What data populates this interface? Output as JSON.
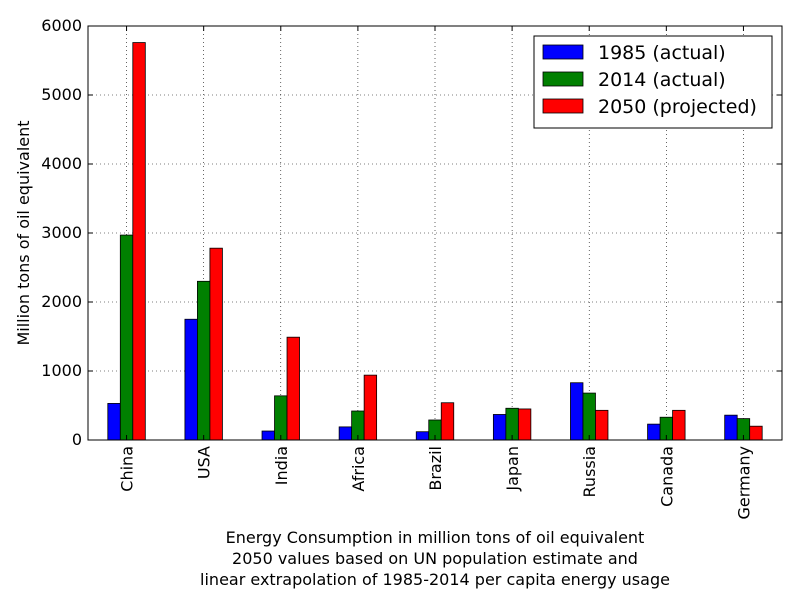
{
  "chart_data": {
    "type": "bar",
    "title": "",
    "xlabel": "",
    "ylabel": "Million tons of oil equivalent",
    "xlabel_lines": [
      "Energy Consumption in million tons of oil equivalent",
      "2050 values based on UN population estimate and",
      "linear extrapolation of 1985-2014 per capita energy usage"
    ],
    "categories": [
      "China",
      "USA",
      "India",
      "Africa",
      "Brazil",
      "Japan",
      "Russia",
      "Canada",
      "Germany"
    ],
    "ylim": [
      0,
      6000
    ],
    "yticks": [
      0,
      1000,
      2000,
      3000,
      4000,
      5000,
      6000
    ],
    "grid": true,
    "legend_position": "top-right",
    "series": [
      {
        "name": "1985 (actual)",
        "color": "#0000ff",
        "values": [
          530,
          1750,
          130,
          190,
          120,
          370,
          830,
          230,
          360
        ]
      },
      {
        "name": "2014 (actual)",
        "color": "#008000",
        "values": [
          2970,
          2300,
          640,
          420,
          290,
          460,
          680,
          330,
          310
        ]
      },
      {
        "name": "2050 (projected)",
        "color": "#ff0000",
        "values": [
          5760,
          2780,
          1490,
          940,
          540,
          450,
          430,
          430,
          200
        ]
      }
    ]
  }
}
